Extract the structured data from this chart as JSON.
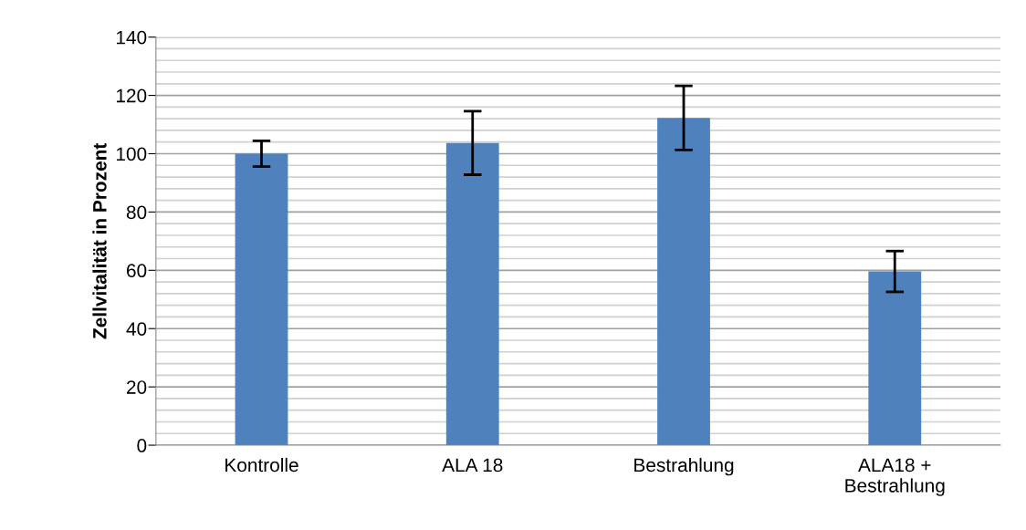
{
  "chart_data": {
    "type": "bar",
    "ylabel": "Zellvitalität in Prozent",
    "categories": [
      "Kontrolle",
      "ALA 18",
      "Bestrahlung",
      "ALA18 +\nBestrahlung"
    ],
    "values": [
      100,
      103.7,
      112.3,
      59.6
    ],
    "errors": [
      4.4,
      10.9,
      11,
      7
    ],
    "color": "#4f81bd",
    "ylim": [
      0,
      140
    ],
    "yticks": [
      0,
      {
        "value": 4,
        "label": null
      },
      {
        "value": 8,
        "label": null
      },
      {
        "value": 12,
        "label": null
      },
      {
        "value": 16,
        "label": null
      },
      20,
      {
        "value": 24,
        "label": null
      },
      {
        "value": 28,
        "label": null
      },
      {
        "value": 32,
        "label": null
      },
      {
        "value": 36,
        "label": null
      },
      40,
      {
        "value": 44,
        "label": null
      },
      {
        "value": 48,
        "label": null
      },
      {
        "value": 52,
        "label": null
      },
      {
        "value": 56,
        "label": null
      },
      60,
      {
        "value": 64,
        "label": null
      },
      {
        "value": 68,
        "label": null
      },
      {
        "value": 72,
        "label": null
      },
      {
        "value": 76,
        "label": null
      },
      80,
      {
        "value": 84,
        "label": null
      },
      {
        "value": 88,
        "label": null
      },
      {
        "value": 92,
        "label": null
      },
      {
        "value": 96,
        "label": null
      },
      100,
      {
        "value": 104,
        "label": null
      },
      {
        "value": 108,
        "label": null
      },
      {
        "value": 112,
        "label": null
      },
      {
        "value": 116,
        "label": null
      },
      120,
      {
        "value": 124,
        "label": null
      },
      {
        "value": 128,
        "label": null
      },
      {
        "value": 132,
        "label": null
      },
      {
        "value": 136,
        "label": null
      },
      140
    ],
    "grid": "y",
    "legend": false
  }
}
